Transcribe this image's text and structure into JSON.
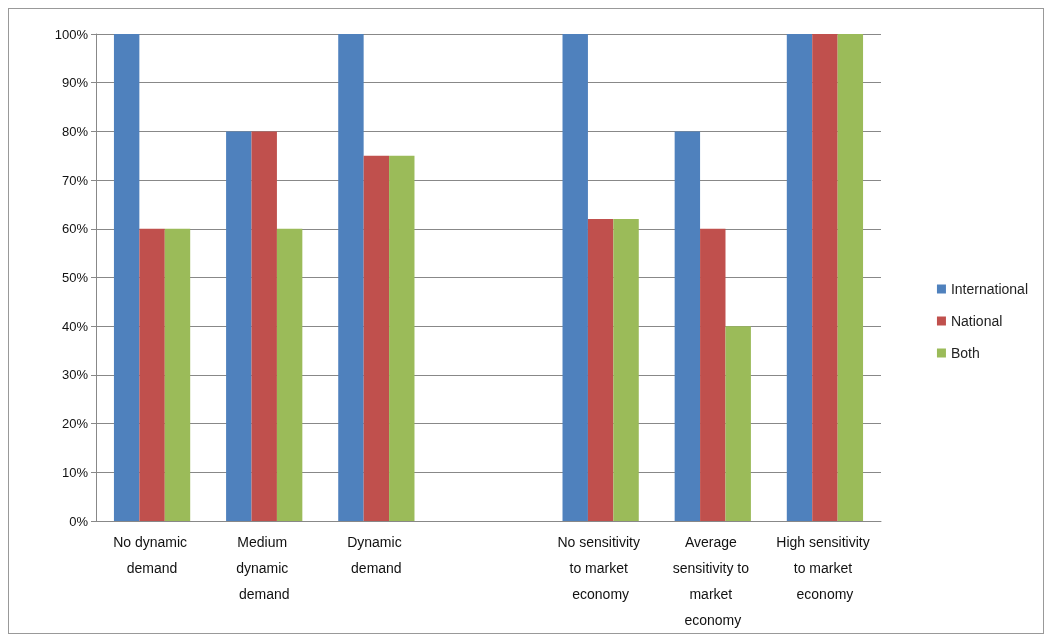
{
  "chart_data": {
    "type": "bar",
    "categories": [
      "No dynamic demand",
      "Medium dynamic demand",
      "Dynamic demand",
      null,
      "No sensitivity to market economy",
      "Average sensitivity to market economy",
      "High sensitivity to market economy"
    ],
    "series": [
      {
        "name": "International",
        "color": "#4f81bd",
        "values": [
          100,
          80,
          100,
          null,
          100,
          80,
          100
        ]
      },
      {
        "name": "National",
        "color": "#c0504d",
        "values": [
          60,
          80,
          75,
          null,
          62,
          60,
          100
        ]
      },
      {
        "name": "Both",
        "color": "#9bbb59",
        "values": [
          60,
          60,
          75,
          null,
          62,
          40,
          100
        ]
      }
    ],
    "ylim": [
      0,
      100
    ],
    "yticks": [
      {
        "value": 0,
        "label": "0%"
      },
      {
        "value": 10,
        "label": "10%"
      },
      {
        "value": 20,
        "label": "20%"
      },
      {
        "value": 30,
        "label": "30%"
      },
      {
        "value": 40,
        "label": "40%"
      },
      {
        "value": 50,
        "label": "50%"
      },
      {
        "value": 60,
        "label": "60%"
      },
      {
        "value": 70,
        "label": "70%"
      },
      {
        "value": 80,
        "label": "80%"
      },
      {
        "value": 90,
        "label": "90%"
      },
      {
        "value": 100,
        "label": "100%"
      }
    ],
    "grid": "y",
    "legend": "right"
  }
}
